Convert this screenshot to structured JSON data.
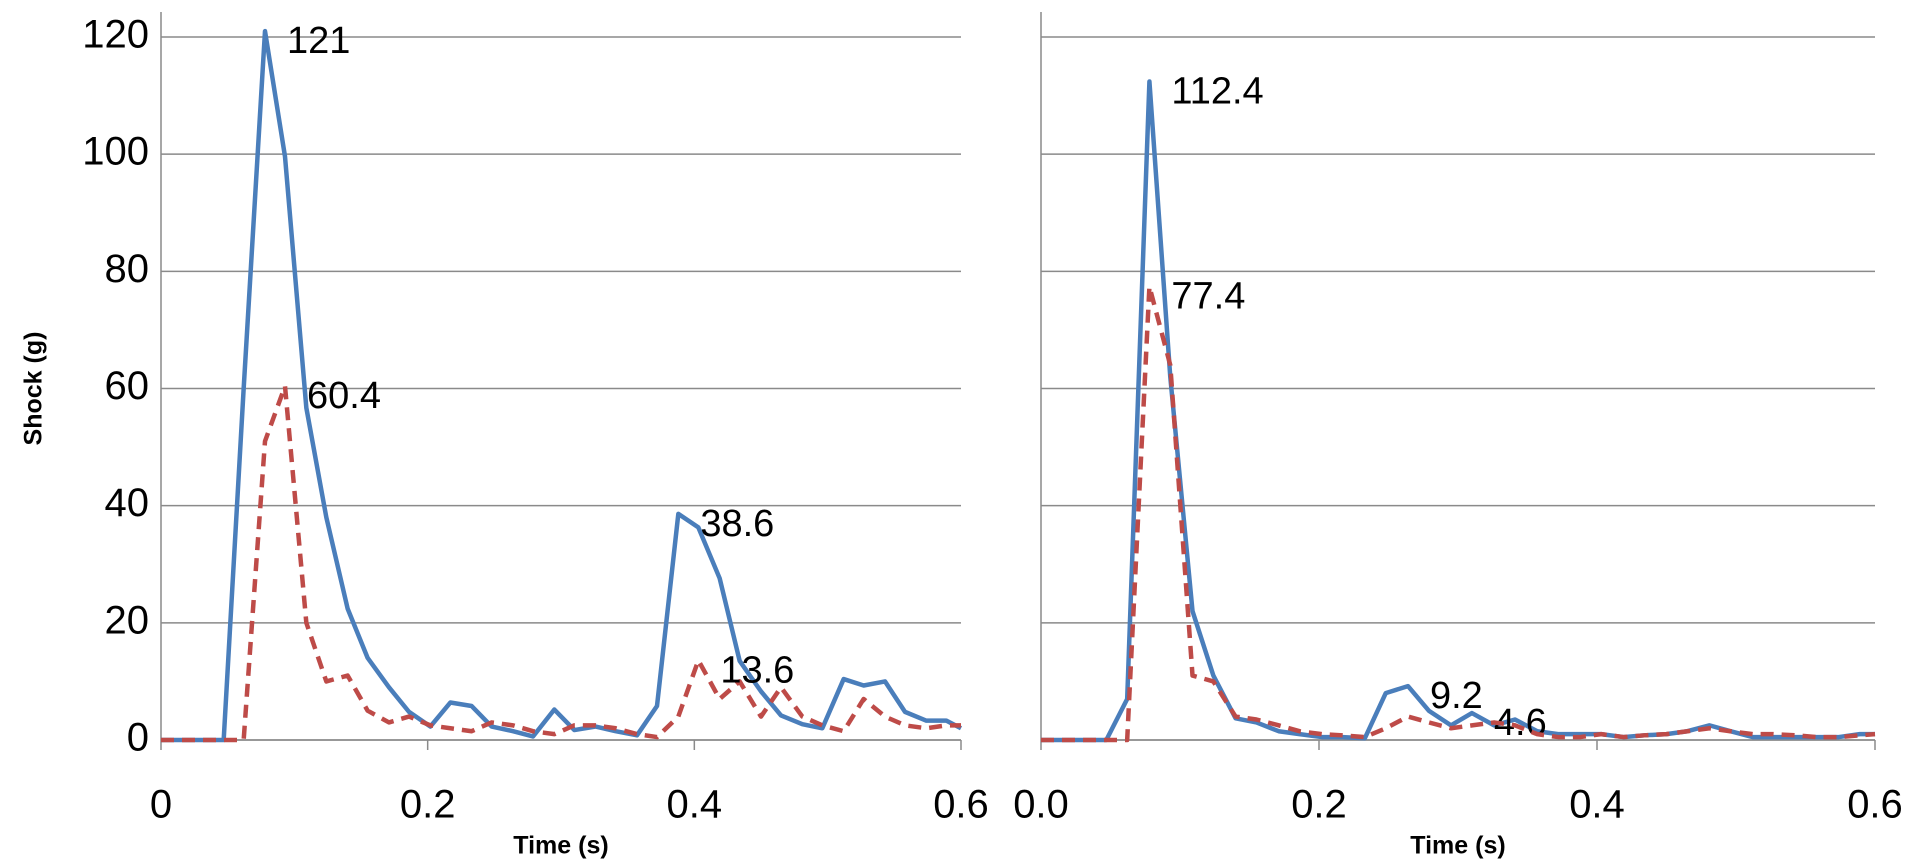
{
  "chart_data": [
    {
      "type": "line",
      "ylabel": "Shock (g)",
      "xlabel": "Time (s)",
      "x": [
        0,
        0.016,
        0.031,
        0.047,
        0.062,
        0.078,
        0.093,
        0.109,
        0.124,
        0.14,
        0.155,
        0.171,
        0.186,
        0.202,
        0.217,
        0.233,
        0.248,
        0.264,
        0.279,
        0.295,
        0.31,
        0.326,
        0.341,
        0.357,
        0.372,
        0.388,
        0.403,
        0.419,
        0.434,
        0.45,
        0.465,
        0.481,
        0.496,
        0.512,
        0.527,
        0.543,
        0.558,
        0.574,
        0.589,
        0.6
      ],
      "series": [
        {
          "color": "#4a7ebb",
          "dash": false,
          "label_points": [
            5,
            25
          ],
          "values": [
            0,
            0,
            0,
            0,
            60,
            121,
            99.6,
            56.7,
            38,
            22.4,
            14,
            9,
            4.8,
            2.3,
            6.4,
            5.8,
            2.3,
            1.5,
            0.6,
            5.2,
            1.7,
            2.3,
            1.5,
            0.8,
            5.8,
            38.6,
            36.3,
            27.6,
            13.5,
            8.3,
            4.2,
            2.7,
            2,
            10.4,
            9.3,
            10,
            4.8,
            3.3,
            3.3,
            2
          ]
        },
        {
          "color": "#be4b48",
          "dash": true,
          "label_points": [
            6,
            26
          ],
          "values": [
            0,
            0,
            0,
            0,
            0,
            51,
            60.4,
            20,
            10,
            11,
            5,
            3,
            4,
            2.5,
            2,
            1.5,
            3,
            2.5,
            1.5,
            1,
            2.5,
            2.5,
            2,
            1,
            0.5,
            4,
            13.6,
            7,
            10,
            4,
            9,
            4,
            2.5,
            1.5,
            7,
            4,
            2.5,
            2,
            2.5,
            2.5
          ]
        }
      ],
      "xlim": [
        0,
        0.6
      ],
      "ylim": [
        0,
        120
      ],
      "xticks": [
        0,
        0.2,
        0.4,
        0.6
      ],
      "yticks": [
        0,
        20,
        40,
        60,
        80,
        100,
        120
      ],
      "grid": true,
      "ytick_labels": true
    },
    {
      "type": "line",
      "xlabel": "Time (s)",
      "x": [
        0,
        0.016,
        0.031,
        0.047,
        0.062,
        0.078,
        0.093,
        0.109,
        0.124,
        0.14,
        0.155,
        0.171,
        0.186,
        0.202,
        0.217,
        0.233,
        0.248,
        0.264,
        0.279,
        0.295,
        0.31,
        0.326,
        0.341,
        0.357,
        0.372,
        0.388,
        0.403,
        0.419,
        0.434,
        0.45,
        0.465,
        0.481,
        0.496,
        0.512,
        0.527,
        0.543,
        0.558,
        0.574,
        0.589,
        0.6
      ],
      "series": [
        {
          "color": "#4a7ebb",
          "dash": false,
          "label_points": [
            5,
            17,
            20
          ],
          "values": [
            0,
            0,
            0,
            0,
            7,
            112.4,
            62,
            22,
            11,
            3.7,
            3,
            1.5,
            1,
            0.5,
            0.5,
            0.3,
            8,
            9.2,
            5,
            2.5,
            4.6,
            2.5,
            3.5,
            1.5,
            1,
            1,
            1,
            0.5,
            0.8,
            1,
            1.5,
            2.5,
            1.5,
            0.5,
            0.5,
            0.5,
            0.5,
            0.5,
            1,
            1
          ]
        },
        {
          "color": "#be4b48",
          "dash": true,
          "label_points": [
            5
          ],
          "values": [
            0,
            0,
            0,
            0,
            0,
            77.4,
            64,
            11,
            10,
            4,
            3.5,
            2.5,
            1.5,
            1,
            0.8,
            0.5,
            2,
            4,
            3,
            2,
            2.5,
            3,
            2.5,
            1,
            0.5,
            0.5,
            1,
            0.5,
            0.8,
            1,
            1.5,
            2,
            1.5,
            1,
            1,
            0.8,
            0.5,
            0.5,
            0.8,
            1
          ]
        }
      ],
      "xlim": [
        0,
        0.6
      ],
      "ylim": [
        0,
        120
      ],
      "xticks": [
        {
          "value": 0,
          "label": "0.0"
        },
        0.2,
        0.4,
        0.6
      ],
      "yticks": [
        0,
        20,
        40,
        60,
        80,
        100,
        120
      ],
      "grid": true,
      "ytick_labels": false
    }
  ]
}
